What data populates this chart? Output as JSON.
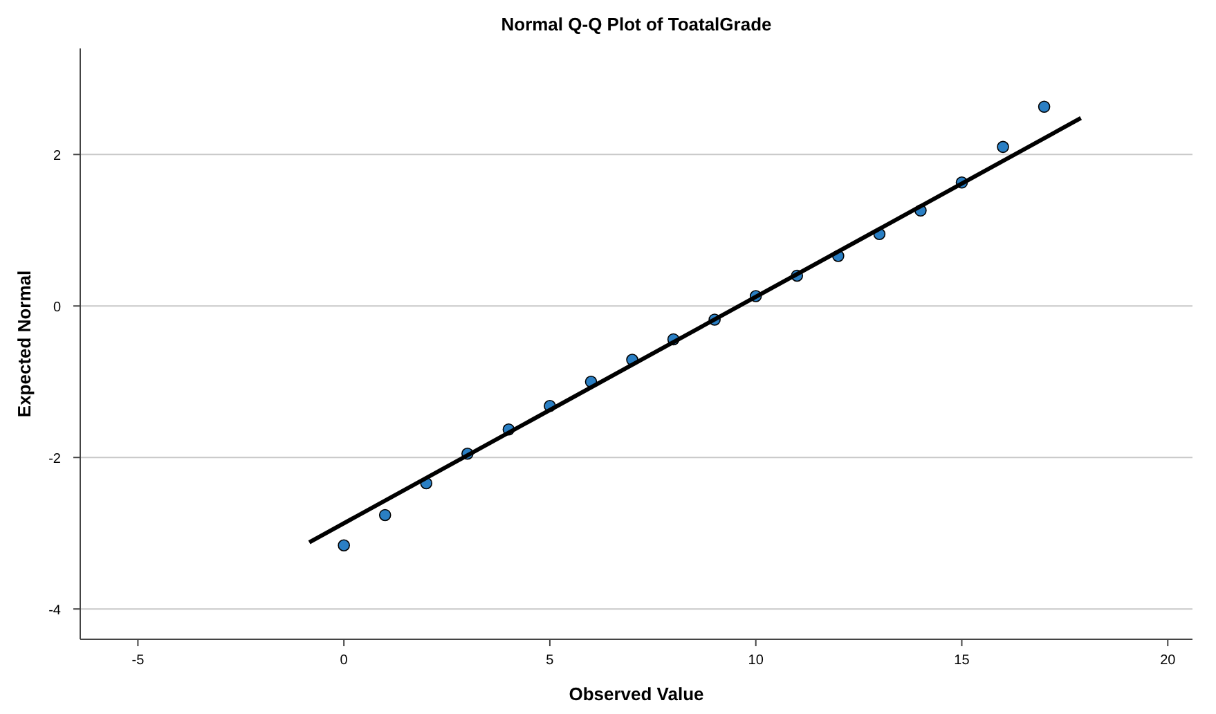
{
  "chart_data": {
    "type": "scatter",
    "title": "Normal Q-Q Plot of ToatalGrade",
    "xlabel": "Observed Value",
    "ylabel": "Expected Normal",
    "x": [
      0,
      1,
      2,
      3,
      4,
      5,
      6,
      7,
      8,
      9,
      10,
      11,
      12,
      13,
      14,
      15,
      16,
      17
    ],
    "series": [
      {
        "color": "#2a7fc4",
        "marker": "circle",
        "values": [
          -3.16,
          -2.76,
          -2.34,
          -1.95,
          -1.63,
          -1.32,
          -1.0,
          -0.71,
          -0.44,
          -0.18,
          0.13,
          0.4,
          0.66,
          0.95,
          1.26,
          1.63,
          2.1,
          2.63
        ]
      },
      {
        "type": "line",
        "color": "#000000",
        "line_style": "solid",
        "x": [
          -0.84,
          17.89
        ],
        "values": [
          -3.12,
          2.48
        ]
      }
    ],
    "xlim": [
      -6.4,
      20.6
    ],
    "ylim": [
      -4.4,
      3.4
    ],
    "xticks": [
      -5,
      0,
      5,
      10,
      15,
      20
    ],
    "yticks": [
      -4,
      -2,
      0,
      2
    ],
    "grid": "y"
  }
}
